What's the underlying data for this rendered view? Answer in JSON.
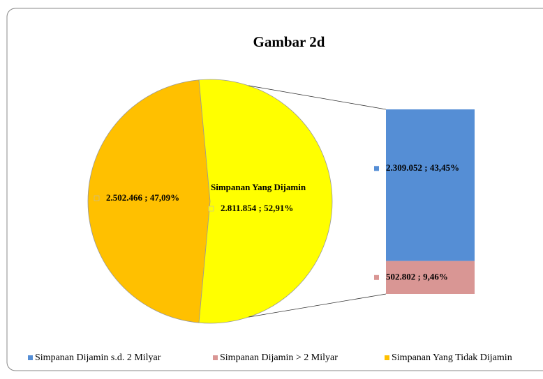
{
  "chart_data": {
    "type": "pie",
    "title": "Gambar 2d",
    "slices": [
      {
        "name": "Simpanan Yang Tidak Dijamin",
        "value": 2502466,
        "value_label": "2.502.466 ; 47,09%",
        "color": "#ffc000"
      },
      {
        "name": "Simpanan Yang Dijamin",
        "value": 2811854,
        "value_label": "2.811.854 ; 52,91%",
        "color": "#ffff00"
      }
    ],
    "breakdown": [
      {
        "name": "Simpanan Dijamin s.d. 2 Milyar",
        "value": 2309052,
        "value_label": "2.309.052 ; 43,45%",
        "color": "#558ed5"
      },
      {
        "name": "Simpanan Dijamin > 2 Milyar",
        "value": 502802,
        "value_label": "502.802 ; 9,46%",
        "color": "#d99694"
      }
    ]
  }
}
